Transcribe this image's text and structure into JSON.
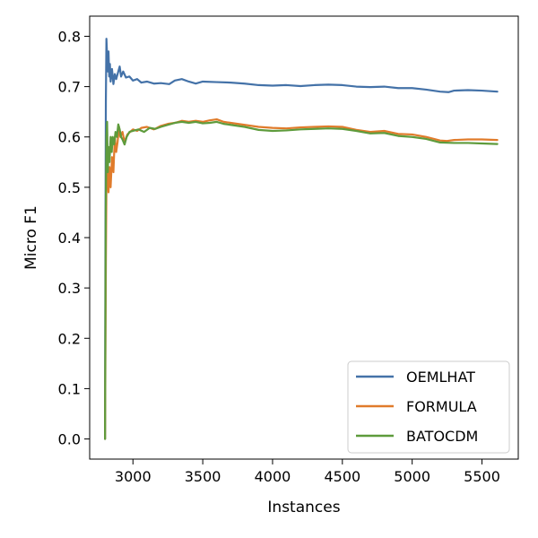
{
  "chart_data": {
    "type": "line",
    "title": "",
    "xlabel": "Instances",
    "ylabel": "Micro F1",
    "xlim": [
      2690,
      5760
    ],
    "ylim": [
      -0.04,
      0.84
    ],
    "xticks": [
      3000,
      3500,
      4000,
      4500,
      5000,
      5500
    ],
    "xtick_labels": [
      "3000",
      "3500",
      "4000",
      "4500",
      "5000",
      "5500"
    ],
    "yticks": [
      0.0,
      0.1,
      0.2,
      0.3,
      0.4,
      0.5,
      0.6,
      0.7,
      0.8
    ],
    "ytick_labels": [
      "0.0",
      "0.1",
      "0.2",
      "0.3",
      "0.4",
      "0.5",
      "0.6",
      "0.7",
      "0.8"
    ],
    "grid": false,
    "legend_position": "lower-right",
    "series": [
      {
        "name": "OEMLHAT",
        "color": "#4472a8",
        "points": [
          [
            2800,
            0.0
          ],
          [
            2803,
            0.4
          ],
          [
            2806,
            0.67
          ],
          [
            2810,
            0.795
          ],
          [
            2815,
            0.76
          ],
          [
            2820,
            0.73
          ],
          [
            2825,
            0.77
          ],
          [
            2830,
            0.72
          ],
          [
            2835,
            0.745
          ],
          [
            2840,
            0.71
          ],
          [
            2850,
            0.735
          ],
          [
            2860,
            0.705
          ],
          [
            2870,
            0.725
          ],
          [
            2880,
            0.715
          ],
          [
            2895,
            0.73
          ],
          [
            2905,
            0.74
          ],
          [
            2915,
            0.72
          ],
          [
            2930,
            0.73
          ],
          [
            2950,
            0.718
          ],
          [
            2975,
            0.72
          ],
          [
            3000,
            0.712
          ],
          [
            3030,
            0.715
          ],
          [
            3060,
            0.708
          ],
          [
            3100,
            0.71
          ],
          [
            3150,
            0.706
          ],
          [
            3200,
            0.707
          ],
          [
            3260,
            0.705
          ],
          [
            3300,
            0.712
          ],
          [
            3350,
            0.715
          ],
          [
            3400,
            0.71
          ],
          [
            3450,
            0.706
          ],
          [
            3500,
            0.71
          ],
          [
            3600,
            0.709
          ],
          [
            3700,
            0.708
          ],
          [
            3800,
            0.706
          ],
          [
            3900,
            0.703
          ],
          [
            4000,
            0.702
          ],
          [
            4100,
            0.703
          ],
          [
            4200,
            0.701
          ],
          [
            4300,
            0.703
          ],
          [
            4400,
            0.704
          ],
          [
            4500,
            0.703
          ],
          [
            4600,
            0.7
          ],
          [
            4700,
            0.699
          ],
          [
            4800,
            0.7
          ],
          [
            4900,
            0.697
          ],
          [
            5000,
            0.697
          ],
          [
            5100,
            0.694
          ],
          [
            5200,
            0.69
          ],
          [
            5260,
            0.689
          ],
          [
            5300,
            0.692
          ],
          [
            5400,
            0.693
          ],
          [
            5500,
            0.692
          ],
          [
            5610,
            0.69
          ]
        ]
      },
      {
        "name": "FORMULA",
        "color": "#e07b2b",
        "points": [
          [
            2800,
            0.0
          ],
          [
            2806,
            0.35
          ],
          [
            2812,
            0.58
          ],
          [
            2818,
            0.53
          ],
          [
            2825,
            0.49
          ],
          [
            2832,
            0.54
          ],
          [
            2840,
            0.5
          ],
          [
            2850,
            0.56
          ],
          [
            2860,
            0.53
          ],
          [
            2870,
            0.6
          ],
          [
            2880,
            0.57
          ],
          [
            2890,
            0.59
          ],
          [
            2900,
            0.62
          ],
          [
            2910,
            0.6
          ],
          [
            2925,
            0.61
          ],
          [
            2940,
            0.59
          ],
          [
            2960,
            0.605
          ],
          [
            2980,
            0.61
          ],
          [
            3000,
            0.615
          ],
          [
            3030,
            0.612
          ],
          [
            3060,
            0.618
          ],
          [
            3100,
            0.62
          ],
          [
            3150,
            0.615
          ],
          [
            3200,
            0.622
          ],
          [
            3250,
            0.626
          ],
          [
            3300,
            0.628
          ],
          [
            3350,
            0.632
          ],
          [
            3400,
            0.63
          ],
          [
            3450,
            0.632
          ],
          [
            3500,
            0.63
          ],
          [
            3550,
            0.633
          ],
          [
            3600,
            0.635
          ],
          [
            3650,
            0.63
          ],
          [
            3700,
            0.628
          ],
          [
            3800,
            0.624
          ],
          [
            3900,
            0.62
          ],
          [
            4000,
            0.618
          ],
          [
            4100,
            0.617
          ],
          [
            4200,
            0.619
          ],
          [
            4300,
            0.62
          ],
          [
            4400,
            0.621
          ],
          [
            4500,
            0.62
          ],
          [
            4600,
            0.614
          ],
          [
            4700,
            0.61
          ],
          [
            4800,
            0.612
          ],
          [
            4900,
            0.606
          ],
          [
            5000,
            0.605
          ],
          [
            5100,
            0.6
          ],
          [
            5200,
            0.593
          ],
          [
            5250,
            0.592
          ],
          [
            5300,
            0.594
          ],
          [
            5400,
            0.595
          ],
          [
            5500,
            0.595
          ],
          [
            5610,
            0.594
          ]
        ]
      },
      {
        "name": "BATOCDM",
        "color": "#5e9b3c",
        "points": [
          [
            2800,
            0.0
          ],
          [
            2805,
            0.45
          ],
          [
            2810,
            0.6
          ],
          [
            2815,
            0.63
          ],
          [
            2820,
            0.53
          ],
          [
            2825,
            0.58
          ],
          [
            2832,
            0.55
          ],
          [
            2840,
            0.6
          ],
          [
            2848,
            0.57
          ],
          [
            2855,
            0.6
          ],
          [
            2865,
            0.585
          ],
          [
            2875,
            0.61
          ],
          [
            2885,
            0.6
          ],
          [
            2895,
            0.625
          ],
          [
            2905,
            0.615
          ],
          [
            2915,
            0.6
          ],
          [
            2925,
            0.595
          ],
          [
            2940,
            0.585
          ],
          [
            2955,
            0.6
          ],
          [
            2975,
            0.61
          ],
          [
            3000,
            0.612
          ],
          [
            3040,
            0.615
          ],
          [
            3080,
            0.61
          ],
          [
            3120,
            0.618
          ],
          [
            3160,
            0.616
          ],
          [
            3200,
            0.62
          ],
          [
            3250,
            0.624
          ],
          [
            3300,
            0.628
          ],
          [
            3350,
            0.63
          ],
          [
            3400,
            0.628
          ],
          [
            3450,
            0.63
          ],
          [
            3500,
            0.627
          ],
          [
            3550,
            0.628
          ],
          [
            3600,
            0.63
          ],
          [
            3650,
            0.626
          ],
          [
            3700,
            0.624
          ],
          [
            3800,
            0.62
          ],
          [
            3900,
            0.614
          ],
          [
            4000,
            0.612
          ],
          [
            4100,
            0.613
          ],
          [
            4200,
            0.615
          ],
          [
            4300,
            0.616
          ],
          [
            4400,
            0.617
          ],
          [
            4500,
            0.616
          ],
          [
            4600,
            0.612
          ],
          [
            4700,
            0.607
          ],
          [
            4800,
            0.608
          ],
          [
            4900,
            0.602
          ],
          [
            5000,
            0.6
          ],
          [
            5100,
            0.596
          ],
          [
            5200,
            0.589
          ],
          [
            5300,
            0.588
          ],
          [
            5400,
            0.588
          ],
          [
            5500,
            0.587
          ],
          [
            5610,
            0.586
          ]
        ]
      }
    ]
  }
}
